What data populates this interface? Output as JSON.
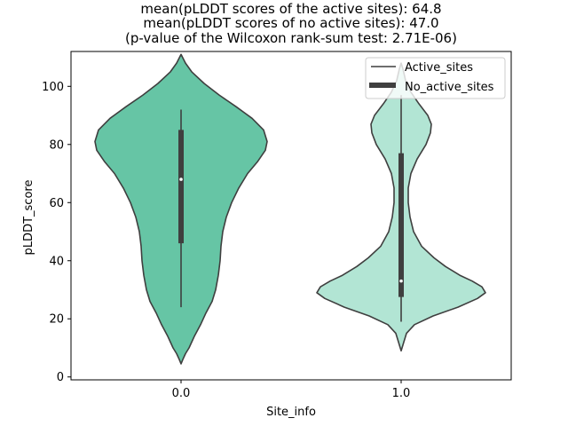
{
  "chart_data": {
    "type": "violin",
    "title_lines": [
      "mean(pLDDT scores of the active sites): 64.8",
      "mean(pLDDT scores of no active sites): 47.0",
      "(p-value of the Wilcoxon rank-sum test: 2.71E-06)"
    ],
    "xlabel": "Site_info",
    "ylabel": "pLDDT_score",
    "ylim": [
      -1,
      112
    ],
    "yticks": [
      0,
      20,
      40,
      60,
      80,
      100
    ],
    "ytick_labels": [
      "0",
      "20",
      "40",
      "60",
      "80",
      "100"
    ],
    "categories": [
      "0.0",
      "1.0"
    ],
    "legend": {
      "location": "upper right",
      "entries": [
        "Active_sites",
        "No_active_sites"
      ]
    },
    "series": [
      {
        "name": "Active_sites",
        "category": "0.0",
        "color": "#66c5a5",
        "median": 68,
        "q1": 46,
        "q3": 85,
        "whisker_low": 24,
        "whisker_high": 92,
        "density": [
          [
            4.5,
            0.0
          ],
          [
            6,
            0.02
          ],
          [
            8,
            0.05
          ],
          [
            10,
            0.09
          ],
          [
            14,
            0.15
          ],
          [
            18,
            0.22
          ],
          [
            22,
            0.28
          ],
          [
            26,
            0.35
          ],
          [
            30,
            0.39
          ],
          [
            35,
            0.42
          ],
          [
            40,
            0.44
          ],
          [
            45,
            0.45
          ],
          [
            50,
            0.47
          ],
          [
            55,
            0.51
          ],
          [
            60,
            0.57
          ],
          [
            65,
            0.65
          ],
          [
            70,
            0.75
          ],
          [
            74,
            0.86
          ],
          [
            78,
            0.95
          ],
          [
            81,
            0.97
          ],
          [
            85,
            0.93
          ],
          [
            89,
            0.8
          ],
          [
            93,
            0.62
          ],
          [
            97,
            0.43
          ],
          [
            101,
            0.26
          ],
          [
            105,
            0.12
          ],
          [
            108,
            0.05
          ],
          [
            111,
            0.0
          ]
        ]
      },
      {
        "name": "No_active_sites",
        "category": "1.0",
        "color": "#b2e5d4",
        "median": 33,
        "q1": 27.5,
        "q3": 77,
        "whisker_low": 19,
        "whisker_high": 97,
        "density": [
          [
            9,
            0.0
          ],
          [
            10,
            0.01
          ],
          [
            12,
            0.03
          ],
          [
            15,
            0.06
          ],
          [
            18,
            0.15
          ],
          [
            21,
            0.36
          ],
          [
            24,
            0.64
          ],
          [
            27,
            0.86
          ],
          [
            29,
            0.95
          ],
          [
            31,
            0.91
          ],
          [
            33,
            0.8
          ],
          [
            35,
            0.66
          ],
          [
            38,
            0.5
          ],
          [
            41,
            0.37
          ],
          [
            45,
            0.23
          ],
          [
            50,
            0.14
          ],
          [
            55,
            0.1
          ],
          [
            60,
            0.08
          ],
          [
            65,
            0.08
          ],
          [
            70,
            0.11
          ],
          [
            75,
            0.18
          ],
          [
            80,
            0.28
          ],
          [
            84,
            0.33
          ],
          [
            87,
            0.34
          ],
          [
            90,
            0.3
          ],
          [
            94,
            0.2
          ],
          [
            98,
            0.11
          ],
          [
            102,
            0.05
          ],
          [
            106,
            0.02
          ],
          [
            108,
            0.0
          ]
        ]
      }
    ]
  }
}
